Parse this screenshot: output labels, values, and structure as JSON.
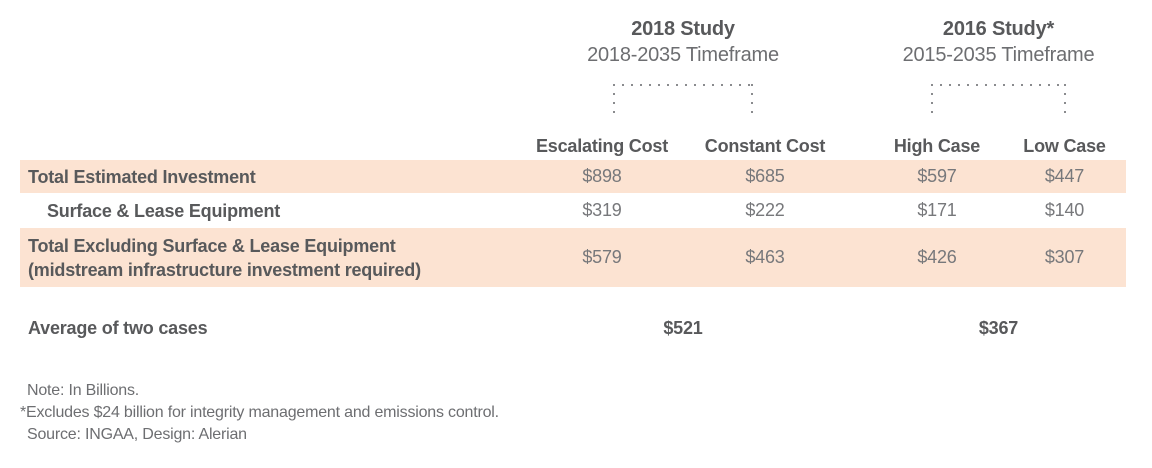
{
  "studies": [
    {
      "title": "2018 Study",
      "timeframe": "2018-2035 Timeframe",
      "columns": [
        "Escalating Cost",
        "Constant Cost"
      ]
    },
    {
      "title": "2016 Study*",
      "timeframe": "2015-2035 Timeframe",
      "columns": [
        "High Case",
        "Low Case"
      ]
    }
  ],
  "rows": [
    {
      "label": "Total Estimated Investment",
      "label2": "",
      "values": [
        "$898",
        "$685",
        "$597",
        "$447"
      ]
    },
    {
      "label": "Surface & Lease Equipment",
      "label2": "",
      "values": [
        "$319",
        "$222",
        "$171",
        "$140"
      ]
    },
    {
      "label": "Total Excluding Surface & Lease Equipment",
      "label2": "(midstream infrastructure investment required)",
      "values": [
        "$579",
        "$463",
        "$426",
        "$307"
      ]
    }
  ],
  "average": {
    "label": "Average of two cases",
    "values": [
      "$521",
      "$367"
    ]
  },
  "footnotes": [
    "Note: In Billions.",
    "*Excludes $24 billion for integrity management and emissions control.",
    "Source: INGAA, Design: Alerian"
  ],
  "colors": {
    "highlight": "#fce3d2",
    "heading": "#58595b",
    "body": "#6d6e71",
    "value": "#77787b",
    "dots": "#8a8b8e"
  },
  "chart_data": {
    "type": "table",
    "title": "",
    "units": "USD billions",
    "column_groups": [
      {
        "title": "2018 Study",
        "subtitle": "2018-2035 Timeframe",
        "columns": [
          "Escalating Cost",
          "Constant Cost"
        ]
      },
      {
        "title": "2016 Study*",
        "subtitle": "2015-2035 Timeframe",
        "columns": [
          "High Case",
          "Low Case"
        ]
      }
    ],
    "rows": [
      {
        "label": "Total Estimated Investment",
        "values": [
          898,
          685,
          597,
          447
        ]
      },
      {
        "label": "Surface & Lease Equipment",
        "values": [
          319,
          222,
          171,
          140
        ]
      },
      {
        "label": "Total Excluding Surface & Lease Equipment (midstream infrastructure investment required)",
        "values": [
          579,
          463,
          426,
          307
        ]
      },
      {
        "label": "Average of two cases",
        "values": [
          521,
          367
        ]
      }
    ],
    "notes": [
      "Note: In Billions.",
      "*Excludes $24 billion for integrity management and emissions control.",
      "Source: INGAA, Design: Alerian"
    ]
  }
}
